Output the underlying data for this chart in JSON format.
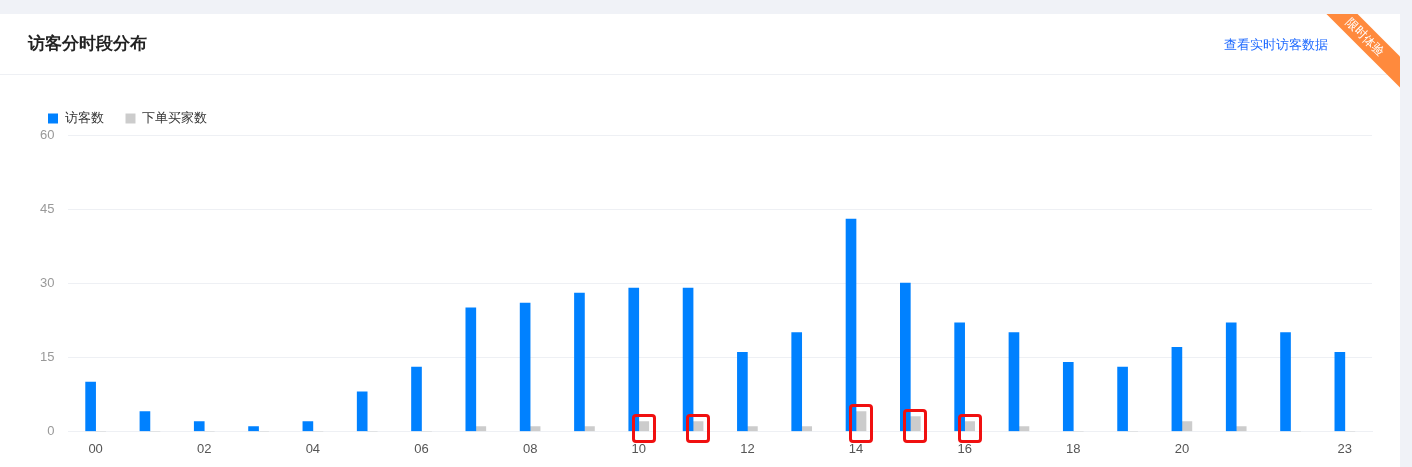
{
  "chart_data": {
    "type": "bar",
    "title": "访客分时段分布",
    "categories": [
      "00",
      null,
      "02",
      null,
      "04",
      null,
      "06",
      null,
      "08",
      null,
      "10",
      null,
      "12",
      null,
      "14",
      null,
      "16",
      null,
      "18",
      null,
      "20",
      null,
      null,
      "23"
    ],
    "series": [
      {
        "name": "访客数",
        "color": "#0081ff",
        "values": [
          10,
          4,
          2,
          1,
          2,
          8,
          13,
          25,
          26,
          28,
          29,
          29,
          16,
          20,
          43,
          30,
          22,
          20,
          14,
          13,
          17,
          22,
          20,
          16
        ]
      },
      {
        "name": "下单买家数",
        "color": "#cccccc",
        "values": [
          0,
          0,
          0,
          0,
          0,
          0,
          0,
          1,
          1,
          1,
          2,
          2,
          1,
          1,
          4,
          3,
          2,
          1,
          0,
          0,
          2,
          1,
          0,
          0
        ]
      }
    ],
    "ylim": [
      0,
      60
    ],
    "yticks": [
      0,
      15,
      30,
      45,
      60
    ],
    "grid": "y",
    "legend": "top left",
    "annotations": [
      "查看实时访客数据",
      "限时体验"
    ]
  }
}
